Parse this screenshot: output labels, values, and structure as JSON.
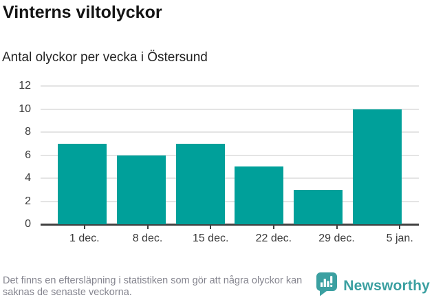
{
  "header": {
    "title": "Vinterns viltolyckor",
    "subtitle": "Antal olyckor per vecka i Östersund"
  },
  "chart_data": {
    "type": "bar",
    "categories": [
      "1 dec.",
      "8 dec.",
      "15 dec.",
      "22 dec.",
      "29 dec.",
      "5 jan."
    ],
    "values": [
      7,
      6,
      7,
      5,
      3,
      10
    ],
    "title": "Vinterns viltolyckor",
    "subtitle": "Antal olyckor per vecka i Östersund",
    "xlabel": "",
    "ylabel": "",
    "ylim": [
      0,
      12
    ],
    "ytick_step": 2,
    "grid": "horizontal",
    "legend": "none",
    "bar_color": "#00a09a"
  },
  "footer": {
    "note": "Det finns en eftersläpning i statistiken som gör att några olyckor kan saknas de senaste veckorna.",
    "brand": "Newsworthy"
  },
  "colors": {
    "bar": "#00a09a",
    "gridline": "#e4e4e4",
    "axis": "#404040",
    "brand_teal": "#3ba0a1"
  }
}
